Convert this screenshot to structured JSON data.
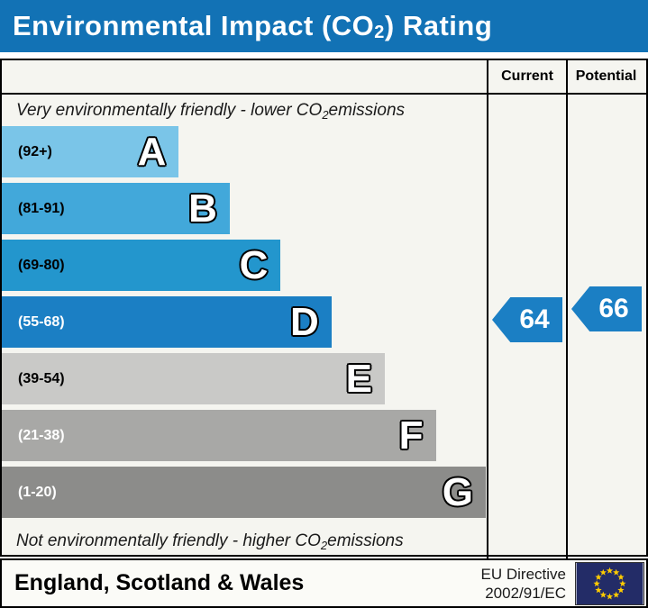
{
  "title": {
    "pre": "Environmental Impact (CO",
    "sub": "2",
    "post": ") Rating",
    "bar_color": "#1272b5"
  },
  "table": {
    "columns": {
      "current": "Current",
      "potential": "Potential"
    },
    "top_caption": {
      "pre": "Very environmentally friendly - lower CO",
      "sub": "2",
      "post": " emissions"
    },
    "bottom_caption": {
      "pre": "Not environmentally friendly - higher CO",
      "sub": "2",
      "post": " emissions"
    }
  },
  "chart_data": {
    "type": "bar",
    "title": "Environmental Impact (CO2) Rating",
    "bands": [
      {
        "letter": "A",
        "range": "(92+)",
        "min": 92,
        "max": 100,
        "width_pct": 36.5,
        "color": "#7ac5e8",
        "range_color": "#000000"
      },
      {
        "letter": "B",
        "range": "(81-91)",
        "min": 81,
        "max": 91,
        "width_pct": 47,
        "color": "#42a8da",
        "range_color": "#000000"
      },
      {
        "letter": "C",
        "range": "(69-80)",
        "min": 69,
        "max": 80,
        "width_pct": 57.5,
        "color": "#2396cd",
        "range_color": "#000000"
      },
      {
        "letter": "D",
        "range": "(55-68)",
        "min": 55,
        "max": 68,
        "width_pct": 68,
        "color": "#1b7fc4",
        "range_color": "#ffffff"
      },
      {
        "letter": "E",
        "range": "(39-54)",
        "min": 39,
        "max": 54,
        "width_pct": 79,
        "color": "#c9c9c7",
        "range_color": "#000000"
      },
      {
        "letter": "F",
        "range": "(21-38)",
        "min": 21,
        "max": 38,
        "width_pct": 89.5,
        "color": "#a8a8a6",
        "range_color": "#ffffff"
      },
      {
        "letter": "G",
        "range": "(1-20)",
        "min": 1,
        "max": 20,
        "width_pct": 99.8,
        "color": "#8c8c8a",
        "range_color": "#ffffff"
      }
    ],
    "current": {
      "value": "64",
      "band": "D",
      "arrow_color": "#1b7fc4"
    },
    "potential": {
      "value": "66",
      "band": "D",
      "arrow_color": "#1b7fc4"
    }
  },
  "footer": {
    "region": "England, Scotland & Wales",
    "directive_line1": "EU Directive",
    "directive_line2": "2002/91/EC",
    "eu_flag": {
      "background": "#232c67",
      "star_color": "#ffcc00"
    }
  }
}
